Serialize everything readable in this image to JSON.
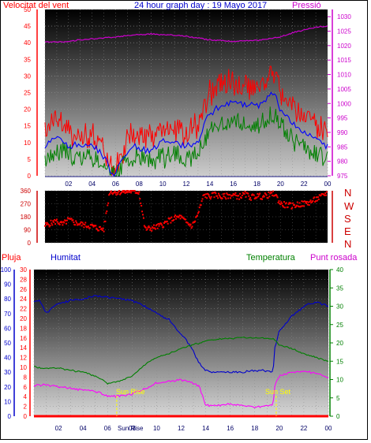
{
  "header": {
    "wind_label": "Velocitat del vent",
    "title": "24 hour graph day : 19 Mayo 2017",
    "pressure_label": "Pressió"
  },
  "direction_labels": [
    "N",
    "W",
    "S",
    "E",
    "N"
  ],
  "lower_header": {
    "rain_label": "Pluja",
    "humidity_label": "Humitat",
    "temperature_label": "Temperatura",
    "dewpoint_label": "Punt rosada"
  },
  "sun": {
    "rise_label": "Sun Rise",
    "set_label": "Sun Set",
    "rise_hour": 6.75,
    "set_hour": 19.75
  },
  "colors": {
    "wind_gust": "#ff0000",
    "wind_speed": "#0000ff",
    "wind_min": "#008000",
    "pressure": "#cc00cc",
    "direction": "#ff0000",
    "humidity": "#0000cc",
    "temperature": "#008000",
    "dewpoint": "#ff00ff",
    "rain": "#ff0000",
    "axis_pressure": "#cc00cc",
    "axis_direction": "#cc0000",
    "axis_temperature": "#008000"
  },
  "chart_data": [
    {
      "id": "wind_pressure",
      "type": "line",
      "x_range": [
        0,
        24
      ],
      "x_ticks": [
        "02",
        "04",
        "06",
        "08",
        "10",
        "12",
        "14",
        "16",
        "18",
        "20",
        "22",
        "00"
      ],
      "y_left_ticks": [
        "0",
        "5",
        "10",
        "15",
        "20",
        "25",
        "30",
        "35",
        "40",
        "45",
        "50"
      ],
      "y_left_range": [
        0,
        50
      ],
      "y_right_ticks": [
        "975",
        "980",
        "985",
        "990",
        "995",
        "1000",
        "1005",
        "1010",
        "1015",
        "1020",
        "1025",
        "1030"
      ],
      "y_right_range": [
        975,
        1032.5
      ],
      "series": [
        {
          "key": "gust",
          "x": [
            0,
            1,
            2,
            3,
            4,
            5,
            5.5,
            6,
            6.5,
            7,
            7.5,
            8,
            9,
            10,
            11,
            12,
            13,
            13.5,
            14,
            15,
            16,
            17,
            18,
            19,
            19.5,
            20,
            21,
            22,
            23,
            23.5,
            24
          ],
          "y": [
            14,
            17,
            13,
            12,
            12,
            8,
            4,
            1,
            7,
            10,
            13,
            11,
            12,
            14,
            14,
            13,
            15,
            22,
            25,
            27,
            28,
            27,
            26,
            30,
            31,
            26,
            22,
            18,
            16,
            14,
            12
          ]
        },
        {
          "key": "speed",
          "x": [
            0,
            1,
            2,
            3,
            4,
            5,
            5.5,
            6,
            6.5,
            7,
            7.5,
            8,
            9,
            10,
            11,
            12,
            13,
            13.5,
            14,
            15,
            16,
            17,
            18,
            19,
            19.5,
            20,
            21,
            22,
            23,
            23.5,
            24
          ],
          "y": [
            9,
            12,
            9,
            9,
            9,
            6,
            2,
            0,
            5,
            7,
            9,
            8,
            8,
            10,
            10,
            9,
            10,
            16,
            19,
            21,
            22,
            21,
            21,
            24,
            25,
            20,
            16,
            13,
            11,
            10,
            9
          ]
        },
        {
          "key": "min",
          "x": [
            0,
            1,
            2,
            3,
            4,
            5,
            5.5,
            6,
            6.5,
            7,
            7.5,
            8,
            9,
            10,
            11,
            12,
            13,
            13.5,
            14,
            15,
            16,
            17,
            18,
            19,
            19.5,
            20,
            21,
            22,
            23,
            23.5,
            24
          ],
          "y": [
            5,
            8,
            6,
            6,
            6,
            4,
            1,
            0,
            3,
            4,
            6,
            5,
            4,
            5,
            6,
            5,
            6,
            11,
            14,
            16,
            16,
            16,
            16,
            17,
            19,
            15,
            11,
            9,
            7,
            6,
            6
          ]
        },
        {
          "key": "pressure",
          "x": [
            0,
            1,
            2,
            3,
            4,
            5,
            6,
            7,
            8,
            9,
            10,
            11,
            12,
            13,
            14,
            15,
            16,
            17,
            18,
            19,
            20,
            21,
            22,
            23,
            24
          ],
          "y": [
            1021.3,
            1021.2,
            1021.5,
            1022,
            1022.3,
            1022.6,
            1023,
            1023.5,
            1023.8,
            1024,
            1023.8,
            1023.5,
            1023.2,
            1022.6,
            1022,
            1021.8,
            1021.5,
            1021.6,
            1021.8,
            1022.3,
            1023,
            1024.3,
            1025.5,
            1026.3,
            1026.8
          ]
        }
      ]
    },
    {
      "id": "direction",
      "type": "scatter",
      "x_range": [
        0,
        24
      ],
      "y_ticks": [
        "0",
        "90",
        "180",
        "270",
        "360"
      ],
      "y_range": [
        0,
        360
      ],
      "series": [
        {
          "key": "direction",
          "x": [
            0,
            0.5,
            1,
            1.5,
            2,
            2.5,
            3,
            3.5,
            4,
            4.5,
            5,
            5.5,
            6,
            6.5,
            7,
            7.5,
            8,
            8.5,
            9,
            9.5,
            10,
            10.5,
            11,
            11.5,
            12,
            12.5,
            13,
            13.5,
            14,
            14.5,
            15,
            15.5,
            16,
            16.5,
            17,
            17.5,
            18,
            18.5,
            19,
            19.5,
            20,
            20.5,
            21,
            21.5,
            22,
            22.5,
            23,
            23.5,
            24
          ],
          "y": [
            120,
            135,
            150,
            125,
            160,
            140,
            130,
            120,
            115,
            100,
            95,
            355,
            350,
            352,
            355,
            358,
            350,
            95,
            100,
            110,
            125,
            150,
            170,
            180,
            140,
            115,
            200,
            330,
            320,
            335,
            315,
            325,
            330,
            320,
            335,
            315,
            325,
            320,
            330,
            340,
            270,
            260,
            255,
            265,
            270,
            280,
            300,
            320,
            350
          ]
        }
      ]
    },
    {
      "id": "humidity_temperature",
      "type": "line",
      "x_range": [
        0,
        24
      ],
      "x_ticks": [
        "02",
        "04",
        "06",
        "08",
        "10",
        "12",
        "14",
        "16",
        "18",
        "20",
        "22",
        "00"
      ],
      "y_humidity_ticks": [
        "0",
        "10",
        "20",
        "30",
        "40",
        "50",
        "60",
        "70",
        "80",
        "90",
        "100"
      ],
      "y_humidity_range": [
        0,
        100
      ],
      "y_rain_ticks": [
        "0",
        "2",
        "4",
        "6",
        "8",
        "10",
        "12",
        "14",
        "16",
        "18",
        "20",
        "22",
        "24",
        "26",
        "28",
        "30"
      ],
      "y_rain_range": [
        0,
        30
      ],
      "y_temp_ticks": [
        "0",
        "5",
        "10",
        "15",
        "20",
        "25",
        "30",
        "35",
        "40"
      ],
      "y_temp_range": [
        0,
        40
      ],
      "series": [
        {
          "key": "humidity",
          "x": [
            0,
            0.5,
            1,
            1.5,
            2,
            3,
            4,
            5,
            6,
            7,
            8,
            9,
            10,
            11,
            11.5,
            12,
            12.5,
            13,
            13.5,
            14,
            15,
            16,
            17,
            18,
            19,
            19.5,
            19.6,
            20,
            21,
            22,
            23,
            24
          ],
          "y": [
            78,
            79,
            70,
            74,
            77,
            79,
            80,
            82,
            81,
            80,
            79,
            75,
            70,
            66,
            61,
            56,
            51,
            44,
            36,
            31,
            30,
            30,
            30,
            31,
            31,
            30,
            46,
            58,
            68,
            75,
            78,
            75
          ]
        },
        {
          "key": "temperature",
          "x": [
            0,
            1,
            2,
            3,
            4,
            5,
            6,
            7,
            8,
            9,
            10,
            11,
            12,
            13,
            14,
            15,
            16,
            17,
            18,
            19,
            19.5,
            20,
            21,
            22,
            23,
            24
          ],
          "y": [
            13.5,
            13,
            13.2,
            12.5,
            12,
            11,
            9,
            9.5,
            11,
            14,
            16,
            17,
            18.5,
            19.5,
            20.5,
            21,
            21.2,
            21.5,
            21.4,
            21.3,
            21,
            19.5,
            18.5,
            17,
            16,
            15
          ]
        },
        {
          "key": "dewpoint",
          "x": [
            0,
            1,
            2,
            3,
            4,
            5,
            6,
            7,
            8,
            9,
            10,
            11,
            12,
            13,
            13.5,
            14,
            15,
            16,
            17,
            18,
            19,
            19.5,
            19.6,
            20,
            21,
            22,
            23,
            24
          ],
          "y": [
            8.5,
            8.5,
            8,
            7.5,
            7.2,
            6.8,
            5.5,
            5.5,
            6,
            7.5,
            9,
            9.5,
            10,
            9,
            8,
            3,
            3,
            3.2,
            3,
            2.6,
            2.8,
            3,
            8,
            11,
            12,
            12.3,
            11.8,
            10.5
          ]
        },
        {
          "key": "rain",
          "x": [
            0,
            24
          ],
          "y": [
            0,
            0
          ]
        }
      ]
    }
  ]
}
